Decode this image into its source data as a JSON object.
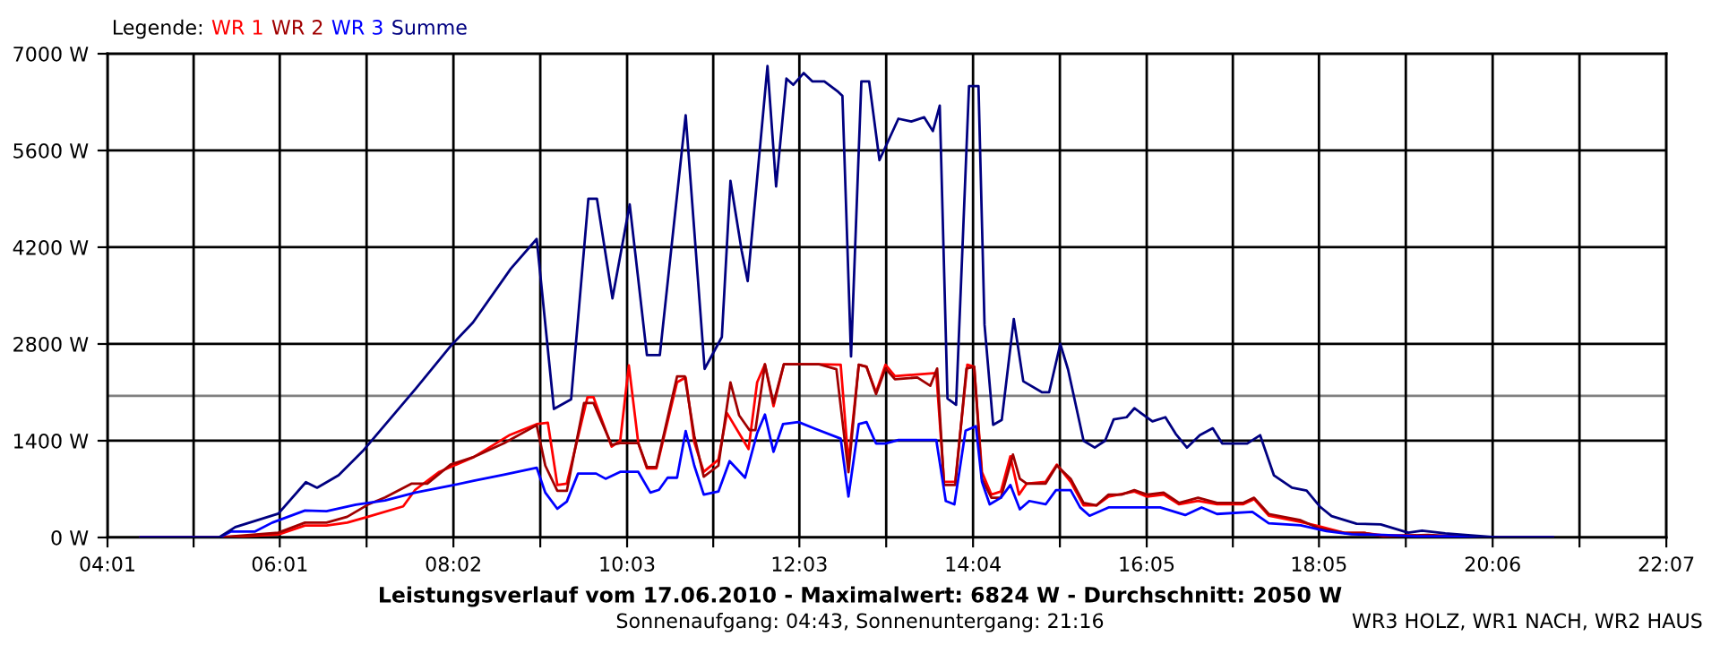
{
  "chart_data": {
    "type": "line",
    "title": "Leistungsverlauf vom 17.06.2010 - Maximalwert: 6824 W - Durchschnitt: 2050 W",
    "subtitle": "Sonnenaufgang: 04:43, Sonnenuntergang: 21:16",
    "legend_title": "Legende:",
    "annotations": [
      "WR3 HOLZ, WR1 NACH, WR2 HAUS"
    ],
    "series": [
      {
        "name": "WR 1",
        "color": "#ff0000",
        "x": [
          4.4,
          5.3,
          6.0,
          6.31,
          6.56,
          6.8,
          7.04,
          7.45,
          7.59,
          7.87,
          8.27,
          8.69,
          9.0,
          9.13,
          9.24,
          9.35,
          9.59,
          9.66,
          9.87,
          9.97,
          10.07,
          10.18,
          10.28,
          10.39,
          10.63,
          10.73,
          10.83,
          10.94,
          11.11,
          11.21,
          11.46,
          11.56,
          11.65,
          11.75,
          11.87,
          12.28,
          12.53,
          12.62,
          12.74,
          12.83,
          12.94,
          13.05,
          13.16,
          13.64,
          13.73,
          13.86,
          14.0,
          14.08,
          14.17,
          14.28,
          14.39,
          14.5,
          14.6,
          14.69,
          14.91,
          15.04,
          15.2,
          15.35,
          15.5,
          15.64,
          15.94,
          16.09,
          16.28,
          16.46,
          16.68,
          16.9,
          17.2,
          17.33,
          17.5,
          17.87,
          18.09,
          18.38,
          18.61,
          18.83,
          19.2
        ],
        "values": [
          0,
          0,
          43,
          173,
          173,
          216,
          300,
          450,
          690,
          950,
          1165,
          1485,
          1640,
          1660,
          760,
          780,
          2030,
          2030,
          1315,
          1400,
          2490,
          1365,
          1000,
          1000,
          2245,
          2315,
          1380,
          950,
          1125,
          1800,
          1280,
          2245,
          2505,
          1900,
          2505,
          2505,
          2500,
          1080,
          2500,
          2470,
          2100,
          2500,
          2335,
          2380,
          805,
          805,
          2500,
          2470,
          945,
          620,
          665,
          1175,
          620,
          780,
          805,
          1055,
          805,
          465,
          465,
          590,
          665,
          590,
          620,
          480,
          530,
          480,
          480,
          555,
          315,
          225,
          160,
          65,
          65,
          30,
          30
        ]
      },
      {
        "name": "WR 2",
        "color": "#a00000",
        "x": [
          4.4,
          5.3,
          6.0,
          6.31,
          6.56,
          6.8,
          7.04,
          7.24,
          7.55,
          7.73,
          8.0,
          8.27,
          8.62,
          9.0,
          9.1,
          9.24,
          9.35,
          9.55,
          9.66,
          9.87,
          9.97,
          10.18,
          10.28,
          10.39,
          10.63,
          10.72,
          10.83,
          10.94,
          11.11,
          11.25,
          11.35,
          11.47,
          11.54,
          11.65,
          11.75,
          11.87,
          12.28,
          12.48,
          12.62,
          12.74,
          12.83,
          12.94,
          13.05,
          13.16,
          13.42,
          13.57,
          13.65,
          13.73,
          13.86,
          13.99,
          14.08,
          14.17,
          14.28,
          14.39,
          14.53,
          14.61,
          14.69,
          14.91,
          15.04,
          15.2,
          15.35,
          15.5,
          15.64,
          15.79,
          15.94,
          16.09,
          16.28,
          16.46,
          16.68,
          16.9,
          17.2,
          17.33,
          17.5,
          17.87,
          18.09,
          18.38,
          18.61,
          18.83,
          19.35,
          19.64,
          19.94,
          20.8
        ],
        "values": [
          0,
          0,
          70,
          215,
          215,
          300,
          475,
          580,
          780,
          780,
          1055,
          1165,
          1365,
          1625,
          1040,
          675,
          675,
          1945,
          1945,
          1340,
          1365,
          1365,
          1020,
          1020,
          2330,
          2330,
          1470,
          880,
          1040,
          2245,
          1770,
          1555,
          1555,
          2505,
          1945,
          2505,
          2505,
          2435,
          945,
          2500,
          2470,
          2075,
          2445,
          2290,
          2315,
          2195,
          2445,
          760,
          760,
          2445,
          2470,
          850,
          575,
          575,
          1200,
          850,
          780,
          780,
          1040,
          850,
          500,
          465,
          620,
          620,
          685,
          620,
          650,
          500,
          575,
          500,
          500,
          575,
          340,
          250,
          130,
          65,
          65,
          18,
          37,
          20,
          0,
          0
        ]
      },
      {
        "name": "WR 3",
        "color": "#0000ff",
        "x": [
          4.4,
          5.32,
          5.45,
          5.73,
          5.93,
          6.31,
          6.56,
          6.9,
          7.24,
          7.59,
          8.0,
          8.27,
          8.62,
          9.0,
          9.1,
          9.24,
          9.35,
          9.48,
          9.69,
          9.8,
          9.97,
          10.18,
          10.32,
          10.42,
          10.52,
          10.63,
          10.73,
          10.83,
          10.94,
          11.11,
          11.24,
          11.42,
          11.56,
          11.65,
          11.75,
          11.86,
          12.04,
          12.23,
          12.53,
          12.62,
          12.74,
          12.83,
          12.94,
          13.05,
          13.2,
          13.64,
          13.75,
          13.85,
          13.98,
          14.1,
          14.17,
          14.26,
          14.39,
          14.5,
          14.61,
          14.72,
          14.91,
          15.03,
          15.2,
          15.31,
          15.42,
          15.64,
          16.24,
          16.53,
          16.72,
          16.9,
          17.31,
          17.5,
          17.87,
          18.17,
          18.46,
          18.83,
          19.2,
          19.57,
          19.94,
          20.8
        ],
        "values": [
          0,
          0,
          86,
          86,
          215,
          390,
          380,
          475,
          535,
          650,
          750,
          820,
          910,
          1010,
          650,
          415,
          520,
          925,
          925,
          850,
          950,
          950,
          650,
          690,
          865,
          865,
          1540,
          1040,
          620,
          665,
          1105,
          865,
          1510,
          1780,
          1240,
          1640,
          1670,
          1575,
          1430,
          593,
          1640,
          1670,
          1360,
          1360,
          1410,
          1410,
          528,
          480,
          1545,
          1610,
          806,
          480,
          575,
          760,
          407,
          528,
          480,
          685,
          685,
          435,
          315,
          435,
          435,
          325,
          435,
          340,
          370,
          205,
          175,
          93,
          46,
          37,
          18,
          18,
          0,
          0
        ]
      },
      {
        "name": "Summe",
        "color": "#000080",
        "x": [
          4.4,
          5.31,
          5.5,
          6.0,
          6.32,
          6.45,
          6.7,
          6.98,
          7.6,
          8.0,
          8.26,
          8.7,
          9.0,
          9.2,
          9.4,
          9.6,
          9.7,
          9.88,
          10.08,
          10.28,
          10.43,
          10.73,
          10.95,
          11.15,
          11.25,
          11.38,
          11.45,
          11.68,
          11.78,
          11.9,
          11.98,
          12.1,
          12.2,
          12.34,
          12.5,
          12.55,
          12.65,
          12.77,
          12.86,
          12.98,
          13.2,
          13.35,
          13.5,
          13.6,
          13.68,
          13.77,
          13.87,
          14.02,
          14.13,
          14.2,
          14.3,
          14.4,
          14.54,
          14.65,
          14.87,
          14.95,
          15.08,
          15.17,
          15.35,
          15.48,
          15.6,
          15.7,
          15.85,
          15.94,
          16.15,
          16.3,
          16.42,
          16.55,
          16.7,
          16.85,
          16.96,
          17.25,
          17.4,
          17.56,
          17.77,
          17.94,
          18.1,
          18.23,
          18.52,
          18.8,
          19.12,
          19.28,
          19.55,
          19.85,
          20.16,
          20.8
        ],
        "values": [
          0,
          0,
          150,
          345,
          800,
          720,
          900,
          1250,
          2160,
          2770,
          3110,
          3890,
          4320,
          1860,
          2000,
          4900,
          4900,
          3460,
          4820,
          2640,
          2640,
          6110,
          2440,
          2900,
          5160,
          4150,
          3710,
          6824,
          5080,
          6640,
          6550,
          6720,
          6600,
          6600,
          6450,
          6390,
          2620,
          6600,
          6600,
          5460,
          6060,
          6020,
          6080,
          5880,
          6250,
          2010,
          1920,
          6530,
          6530,
          3080,
          1630,
          1700,
          3160,
          2260,
          2100,
          2100,
          2800,
          2430,
          1400,
          1300,
          1400,
          1710,
          1740,
          1870,
          1680,
          1740,
          1500,
          1300,
          1480,
          1580,
          1360,
          1360,
          1480,
          900,
          720,
          680,
          440,
          310,
          200,
          190,
          70,
          100,
          60,
          30,
          0,
          0
        ]
      }
    ],
    "xlim": [
      4.0167,
      22.1167
    ],
    "xticks": [
      {
        "value": 4.0167,
        "label": "04:01"
      },
      {
        "value": 5.0167,
        "label": null
      },
      {
        "value": 6.0167,
        "label": "06:01"
      },
      {
        "value": 7.025,
        "label": null
      },
      {
        "value": 8.0333,
        "label": "08:02"
      },
      {
        "value": 9.0417,
        "label": null
      },
      {
        "value": 10.05,
        "label": "10:03"
      },
      {
        "value": 11.05,
        "label": null
      },
      {
        "value": 12.05,
        "label": "12:03"
      },
      {
        "value": 13.0583,
        "label": null
      },
      {
        "value": 14.0667,
        "label": "14:04"
      },
      {
        "value": 15.075,
        "label": null
      },
      {
        "value": 16.0833,
        "label": "16:05"
      },
      {
        "value": 17.0833,
        "label": null
      },
      {
        "value": 18.0833,
        "label": "18:05"
      },
      {
        "value": 19.0917,
        "label": null
      },
      {
        "value": 20.1,
        "label": "20:06"
      },
      {
        "value": 21.1083,
        "label": null
      },
      {
        "value": 22.1167,
        "label": "22:07"
      }
    ],
    "ylim": [
      0,
      7000
    ],
    "yticks": [
      {
        "value": 0,
        "label": "0 W"
      },
      {
        "value": 1400,
        "label": "1400 W"
      },
      {
        "value": 2800,
        "label": "2800 W"
      },
      {
        "value": 4200,
        "label": "4200 W"
      },
      {
        "value": 5600,
        "label": "5600 W"
      },
      {
        "value": 7000,
        "label": "7000 W"
      }
    ],
    "ref_lines": [
      {
        "axis": "y",
        "value": 2050,
        "color": "#808080"
      }
    ],
    "grid": true,
    "legend": "top left",
    "marker": "none",
    "line_style": "solid"
  }
}
